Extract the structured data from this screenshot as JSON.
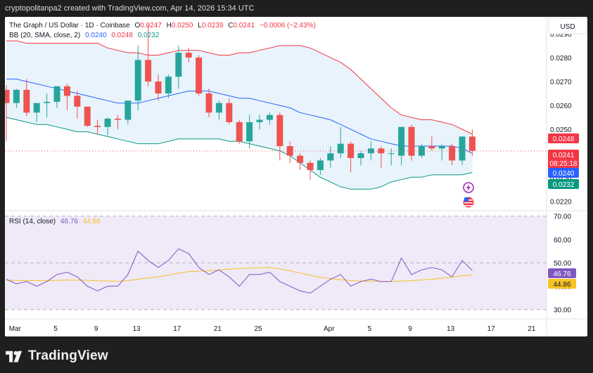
{
  "header": {
    "credit": "cryptopolitanpa2 created with TradingView.com, Apr 14, 2026 15:34 UTC"
  },
  "legend": {
    "symbol": "The Graph / US Dollar · 1D · Coinbase",
    "o_label": "O",
    "o_value": "0.0247",
    "h_label": "H",
    "h_value": "0.0250",
    "l_label": "L",
    "l_value": "0.0239",
    "c_label": "C",
    "c_value": "0.0241",
    "change": "−0.0006 (−2.43%)",
    "bb_label": "BB (20, SMA, close, 2)",
    "bb_basis": "0.0240",
    "bb_upper": "0.0248",
    "bb_lower": "0.0232",
    "rsi_label": "RSI (14, close)",
    "rsi_value": "46.76",
    "rsi_ma": "44.86"
  },
  "currency_button": "USD",
  "price_badges": {
    "upper": "0.0248",
    "last": "0.0241",
    "countdown": "08:25:18",
    "basis": "0.0240",
    "lower": "0.0232"
  },
  "rsi_badges": {
    "rsi": "46.76",
    "ma": "44.86"
  },
  "footer": {
    "brand": "TradingView"
  },
  "colors": {
    "up": "#26a69a",
    "down": "#ef5350",
    "upper_band": "#f23645",
    "basis": "#2962ff",
    "lower_band": "#089981",
    "band_fill": "#e8f3fc",
    "rsi": "#7e57c2",
    "rsi_ma": "#f7c325",
    "rsi_fill": "#efe9f8"
  },
  "icons": [
    "lightning-icon",
    "us-flag-icon",
    "tradingview-logo-icon"
  ],
  "chart_data": [
    {
      "type": "candlestick",
      "title": "The Graph / US Dollar · 1D · Coinbase",
      "x_ticks": [
        "Mar",
        "5",
        "9",
        "13",
        "17",
        "21",
        "25",
        "Apr",
        "5",
        "9",
        "13",
        "17",
        "21"
      ],
      "y_ticks": [
        "0.0290",
        "0.0280",
        "0.0270",
        "0.0260",
        "0.0250",
        "0.0240",
        "0.0230",
        "0.0220"
      ],
      "ylim": [
        0.0216,
        0.0297
      ],
      "scale": "linear",
      "grid": false,
      "candles": [
        {
          "o": 0.02665,
          "h": 0.02685,
          "l": 0.0245,
          "c": 0.0261
        },
        {
          "o": 0.0261,
          "h": 0.0267,
          "l": 0.0259,
          "c": 0.02665
        },
        {
          "o": 0.02665,
          "h": 0.0271,
          "l": 0.02555,
          "c": 0.0257
        },
        {
          "o": 0.0257,
          "h": 0.02605,
          "l": 0.0253,
          "c": 0.0261
        },
        {
          "o": 0.0261,
          "h": 0.0265,
          "l": 0.0255,
          "c": 0.02615
        },
        {
          "o": 0.02615,
          "h": 0.0268,
          "l": 0.0259,
          "c": 0.0268
        },
        {
          "o": 0.0268,
          "h": 0.0269,
          "l": 0.0258,
          "c": 0.0264
        },
        {
          "o": 0.0264,
          "h": 0.0266,
          "l": 0.02545,
          "c": 0.02595
        },
        {
          "o": 0.02595,
          "h": 0.0259,
          "l": 0.0251,
          "c": 0.02515
        },
        {
          "o": 0.02515,
          "h": 0.0254,
          "l": 0.0248,
          "c": 0.0251
        },
        {
          "o": 0.0251,
          "h": 0.0255,
          "l": 0.02475,
          "c": 0.02545
        },
        {
          "o": 0.02545,
          "h": 0.0256,
          "l": 0.025,
          "c": 0.0254
        },
        {
          "o": 0.0254,
          "h": 0.0262,
          "l": 0.0252,
          "c": 0.0262
        },
        {
          "o": 0.0262,
          "h": 0.0285,
          "l": 0.0258,
          "c": 0.0279
        },
        {
          "o": 0.0279,
          "h": 0.0294,
          "l": 0.0268,
          "c": 0.027
        },
        {
          "o": 0.027,
          "h": 0.0273,
          "l": 0.0262,
          "c": 0.0265
        },
        {
          "o": 0.0265,
          "h": 0.0273,
          "l": 0.0263,
          "c": 0.0272
        },
        {
          "o": 0.0272,
          "h": 0.0285,
          "l": 0.0267,
          "c": 0.0282
        },
        {
          "o": 0.0282,
          "h": 0.0284,
          "l": 0.0278,
          "c": 0.028
        },
        {
          "o": 0.028,
          "h": 0.0281,
          "l": 0.0264,
          "c": 0.0265
        },
        {
          "o": 0.0265,
          "h": 0.0267,
          "l": 0.0255,
          "c": 0.0257
        },
        {
          "o": 0.0257,
          "h": 0.0262,
          "l": 0.0254,
          "c": 0.0261
        },
        {
          "o": 0.0261,
          "h": 0.0263,
          "l": 0.0252,
          "c": 0.0253
        },
        {
          "o": 0.0253,
          "h": 0.0254,
          "l": 0.0244,
          "c": 0.0245
        },
        {
          "o": 0.0245,
          "h": 0.0256,
          "l": 0.0242,
          "c": 0.0253
        },
        {
          "o": 0.0253,
          "h": 0.0256,
          "l": 0.025,
          "c": 0.0254
        },
        {
          "o": 0.0254,
          "h": 0.0257,
          "l": 0.0252,
          "c": 0.0256
        },
        {
          "o": 0.0256,
          "h": 0.0257,
          "l": 0.0237,
          "c": 0.0243
        },
        {
          "o": 0.0243,
          "h": 0.0245,
          "l": 0.0236,
          "c": 0.0239
        },
        {
          "o": 0.0239,
          "h": 0.024,
          "l": 0.0233,
          "c": 0.0236
        },
        {
          "o": 0.0236,
          "h": 0.0237,
          "l": 0.0229,
          "c": 0.0233
        },
        {
          "o": 0.0233,
          "h": 0.0238,
          "l": 0.0231,
          "c": 0.0237
        },
        {
          "o": 0.0237,
          "h": 0.0243,
          "l": 0.0234,
          "c": 0.024
        },
        {
          "o": 0.024,
          "h": 0.0251,
          "l": 0.0238,
          "c": 0.0244
        },
        {
          "o": 0.0244,
          "h": 0.0245,
          "l": 0.0232,
          "c": 0.0238
        },
        {
          "o": 0.0238,
          "h": 0.0241,
          "l": 0.0235,
          "c": 0.024
        },
        {
          "o": 0.024,
          "h": 0.0245,
          "l": 0.0237,
          "c": 0.0242
        },
        {
          "o": 0.0242,
          "h": 0.0243,
          "l": 0.0234,
          "c": 0.024
        },
        {
          "o": 0.024,
          "h": 0.0242,
          "l": 0.0235,
          "c": 0.024
        },
        {
          "o": 0.0239,
          "h": 0.0251,
          "l": 0.0235,
          "c": 0.0251
        },
        {
          "o": 0.0251,
          "h": 0.0252,
          "l": 0.0237,
          "c": 0.0239
        },
        {
          "o": 0.0239,
          "h": 0.0244,
          "l": 0.0238,
          "c": 0.0243
        },
        {
          "o": 0.0243,
          "h": 0.0247,
          "l": 0.0241,
          "c": 0.0242
        },
        {
          "o": 0.0242,
          "h": 0.0244,
          "l": 0.0237,
          "c": 0.0243
        },
        {
          "o": 0.0243,
          "h": 0.0244,
          "l": 0.0235,
          "c": 0.0237
        },
        {
          "o": 0.0237,
          "h": 0.0247,
          "l": 0.0235,
          "c": 0.0247
        },
        {
          "o": 0.0247,
          "h": 0.025,
          "l": 0.0239,
          "c": 0.0241
        }
      ],
      "bollinger": {
        "upper": [
          0.0287,
          0.0287,
          0.0286,
          0.0286,
          0.0286,
          0.0286,
          0.0286,
          0.0286,
          0.0286,
          0.0286,
          0.0284,
          0.0283,
          0.0282,
          0.0282,
          0.0281,
          0.0281,
          0.0282,
          0.0283,
          0.0283,
          0.0283,
          0.0282,
          0.0281,
          0.0281,
          0.0282,
          0.0282,
          0.0283,
          0.0284,
          0.0285,
          0.0285,
          0.0285,
          0.0284,
          0.0282,
          0.028,
          0.0278,
          0.0275,
          0.0271,
          0.0267,
          0.0263,
          0.0259,
          0.0256,
          0.0255,
          0.0254,
          0.0254,
          0.0253,
          0.0252,
          0.025,
          0.0248
        ],
        "basis": [
          0.0271,
          0.0271,
          0.027,
          0.0269,
          0.0268,
          0.0267,
          0.0266,
          0.0265,
          0.0264,
          0.0263,
          0.0262,
          0.0261,
          0.0261,
          0.0261,
          0.0262,
          0.0263,
          0.0264,
          0.0265,
          0.0266,
          0.0266,
          0.0266,
          0.0265,
          0.0264,
          0.0263,
          0.0263,
          0.0262,
          0.0261,
          0.026,
          0.0259,
          0.0257,
          0.0256,
          0.0255,
          0.0254,
          0.0252,
          0.025,
          0.0248,
          0.0246,
          0.0245,
          0.0244,
          0.0243,
          0.0243,
          0.0243,
          0.0243,
          0.0243,
          0.0243,
          0.0242,
          0.024
        ],
        "lower": [
          0.0255,
          0.0254,
          0.0253,
          0.0252,
          0.0252,
          0.0251,
          0.025,
          0.0249,
          0.0249,
          0.0248,
          0.0247,
          0.0246,
          0.0245,
          0.0244,
          0.0244,
          0.0244,
          0.0245,
          0.0246,
          0.0246,
          0.0246,
          0.0246,
          0.0246,
          0.0245,
          0.0245,
          0.0244,
          0.0243,
          0.0242,
          0.0241,
          0.0239,
          0.0236,
          0.0233,
          0.023,
          0.0228,
          0.0226,
          0.0225,
          0.0225,
          0.0225,
          0.0226,
          0.0228,
          0.0229,
          0.023,
          0.023,
          0.0231,
          0.0231,
          0.0231,
          0.0231,
          0.0232
        ]
      }
    },
    {
      "type": "line",
      "title": "RSI (14, close)",
      "y_ticks": [
        "70.00",
        "60.00",
        "50.00",
        "40.00",
        "30.00"
      ],
      "ylim": [
        26,
        72
      ],
      "bands": [
        70,
        50,
        30
      ],
      "series": [
        {
          "name": "RSI",
          "values": [
            43,
            41,
            42,
            40,
            42,
            45,
            46,
            44,
            40,
            38,
            40,
            40,
            45,
            55,
            51,
            48,
            51,
            56,
            54,
            48,
            45,
            47,
            44,
            40,
            45,
            45,
            46,
            42,
            40,
            38,
            37,
            40,
            43,
            45,
            40,
            42,
            43,
            42,
            42,
            52,
            45,
            47,
            48,
            47,
            44,
            51,
            46.76
          ]
        },
        {
          "name": "MA",
          "values": [
            42.5,
            42.5,
            42.4,
            42.4,
            42.4,
            42.5,
            42.6,
            42.6,
            42.5,
            42.3,
            42.2,
            42.1,
            42.4,
            43.0,
            43.6,
            44.0,
            44.8,
            45.6,
            46.2,
            46.4,
            46.6,
            46.9,
            47.3,
            47.6,
            47.8,
            47.9,
            48.0,
            47.4,
            46.6,
            45.6,
            44.7,
            43.8,
            43.2,
            42.8,
            42.4,
            42.2,
            42.1,
            42.0,
            42.0,
            42.2,
            42.4,
            42.7,
            43.0,
            43.4,
            43.9,
            44.4,
            44.86
          ]
        }
      ]
    }
  ]
}
